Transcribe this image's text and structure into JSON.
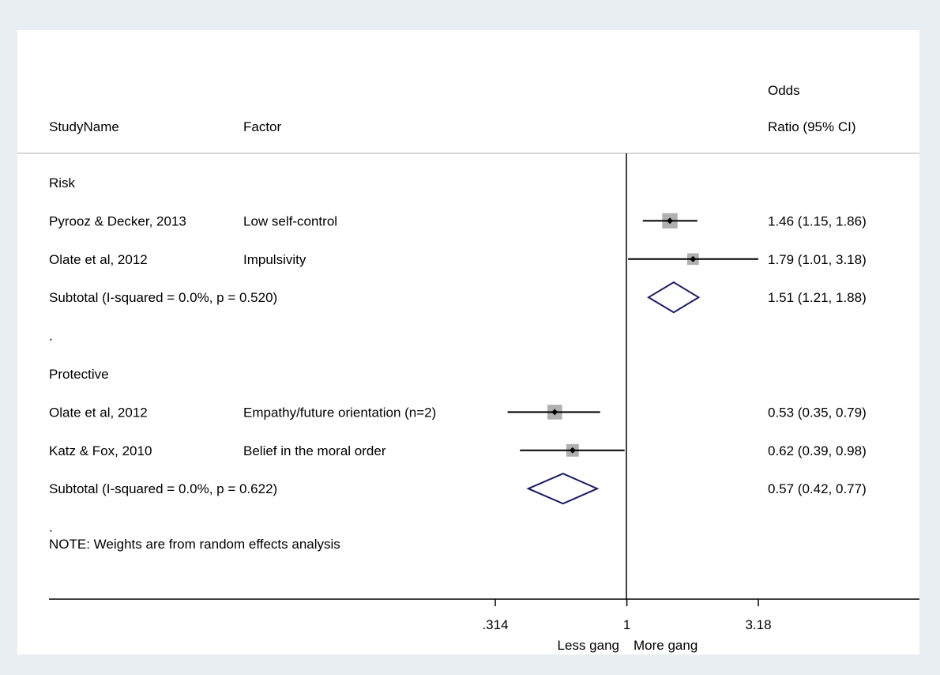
{
  "chart_data": {
    "type": "forest",
    "scale": "log",
    "headers": {
      "study": "StudyName",
      "factor": "Factor",
      "effect_line1": "Odds",
      "effect_line2": "Ratio (95% CI)"
    },
    "rows": [
      {
        "kind": "group",
        "label": "Risk"
      },
      {
        "kind": "study",
        "study": "Pyrooz & Decker, 2013",
        "factor": "Low self-control",
        "or": 1.46,
        "lo": 1.15,
        "hi": 1.86,
        "weight": 0.7,
        "text": "1.46 (1.15, 1.86)"
      },
      {
        "kind": "study",
        "study": "Olate et al, 2012",
        "factor": "Impulsivity",
        "or": 1.79,
        "lo": 1.01,
        "hi": 3.18,
        "weight": 0.3,
        "text": "1.79 (1.01, 3.18)"
      },
      {
        "kind": "subtotal",
        "label": "Subtotal  (I-squared = 0.0%, p = 0.520)",
        "or": 1.51,
        "lo": 1.21,
        "hi": 1.88,
        "text": "1.51 (1.21, 1.88)"
      },
      {
        "kind": "spacer",
        "label": "."
      },
      {
        "kind": "group",
        "label": "Protective"
      },
      {
        "kind": "study",
        "study": "Olate et al, 2012",
        "factor": "Empathy/future orientation (n=2)",
        "or": 0.53,
        "lo": 0.35,
        "hi": 0.79,
        "weight": 0.62,
        "text": "0.53 (0.35, 0.79)"
      },
      {
        "kind": "study",
        "study": "Katz & Fox, 2010",
        "factor": "Belief in the moral order",
        "or": 0.62,
        "lo": 0.39,
        "hi": 0.98,
        "weight": 0.38,
        "text": "0.62 (0.39, 0.98)"
      },
      {
        "kind": "subtotal",
        "label": "Subtotal  (I-squared = 0.0%, p = 0.622)",
        "or": 0.57,
        "lo": 0.42,
        "hi": 0.77,
        "text": "0.57 (0.42, 0.77)"
      },
      {
        "kind": "spacer",
        "label": "."
      }
    ],
    "note": "NOTE: Weights are from random effects analysis",
    "x_ticks": [
      {
        "value": 0.314,
        "label": ".314"
      },
      {
        "value": 1,
        "label": "1"
      },
      {
        "value": 3.18,
        "label": "3.18"
      }
    ],
    "xlim": [
      0.314,
      3.18
    ],
    "favours": {
      "left": "Less gang",
      "right": "More gang"
    },
    "colors": {
      "background": "#e9eef2",
      "panel": "#ffffff",
      "diamond": "#1a1a66",
      "weight_box": "#b0b0b0",
      "line": "#000000"
    }
  }
}
